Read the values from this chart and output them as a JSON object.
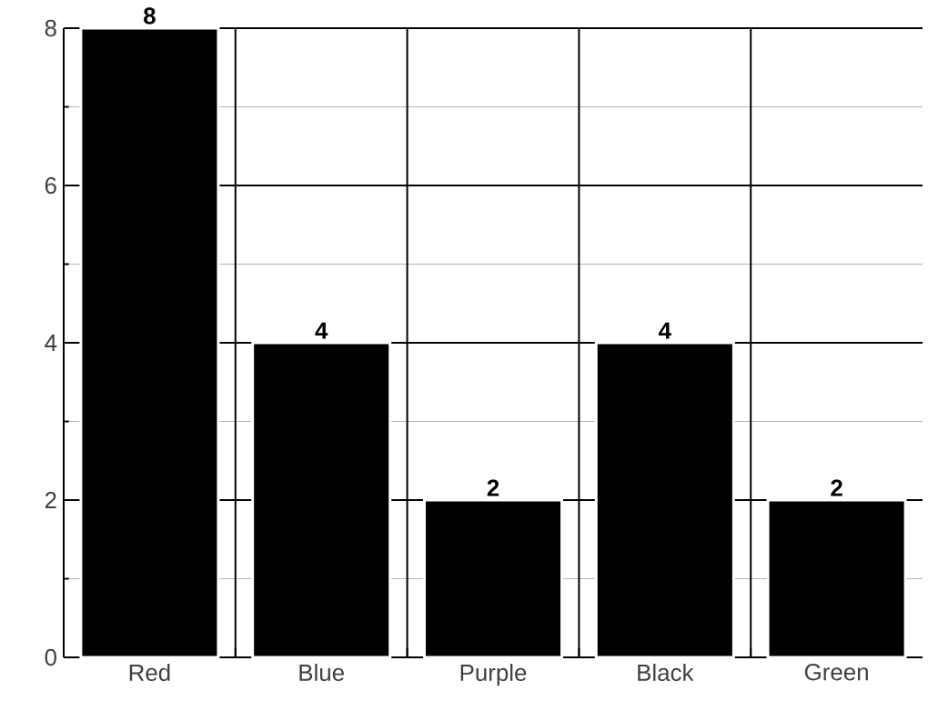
{
  "chart_data": {
    "type": "bar",
    "categories": [
      "Red",
      "Blue",
      "Purple",
      "Black",
      "Green"
    ],
    "values": [
      8,
      4,
      2,
      4,
      2
    ],
    "color": "#000000",
    "ylim": [
      0,
      8
    ],
    "yticks": [
      0,
      {
        "value": 1,
        "label": null
      },
      2,
      {
        "value": 3,
        "label": null
      },
      4,
      {
        "value": 5,
        "label": null
      },
      6,
      {
        "value": 7,
        "label": null
      },
      8
    ],
    "grid": true,
    "data_labels": true
  }
}
